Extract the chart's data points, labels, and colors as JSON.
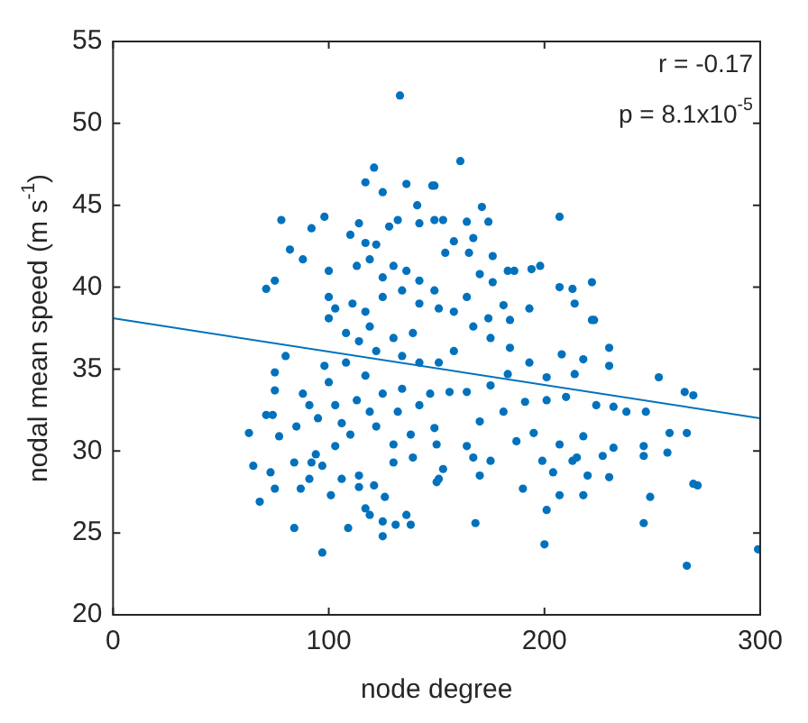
{
  "chart_data": {
    "type": "scatter",
    "xlabel": "node degree",
    "ylabel": "nodal mean speed (m s$^{-1}$)",
    "xlim": [
      0,
      300
    ],
    "xticks": [
      0,
      100,
      200,
      300
    ],
    "ylim": [
      20,
      55
    ],
    "yticks": [
      20,
      25,
      30,
      35,
      40,
      45,
      50,
      55
    ],
    "grid": false,
    "legend": false,
    "marker": "circle",
    "annotations": [
      "r = -0.17",
      "p = 8.1x10$^{-5}$"
    ],
    "series": [
      {
        "color": "#0072bd",
        "x": [
          133,
          121,
          117,
          136,
          148,
          125,
          78,
          98,
          92,
          82,
          88,
          100,
          75,
          71,
          114,
          110,
          117,
          122,
          128,
          132,
          141,
          142,
          149,
          113,
          119,
          125,
          130,
          136,
          142,
          100,
          103,
          111,
          117,
          125,
          134,
          142,
          149,
          151,
          161,
          149,
          171,
          164,
          174,
          153,
          207,
          167,
          158,
          154,
          165,
          176,
          198,
          194,
          183,
          186,
          170,
          176,
          207,
          213,
          222,
          214,
          223,
          164,
          158,
          181,
          193,
          174,
          184,
          80,
          75,
          75,
          74,
          71,
          63,
          77,
          85,
          65,
          73,
          75,
          68,
          84,
          87,
          84,
          97,
          92,
          94,
          91,
          101,
          109,
          88,
          91,
          95,
          98,
          100,
          103,
          106,
          110,
          103,
          97,
          106,
          114,
          114,
          121,
          117,
          119,
          125,
          131,
          136,
          138,
          125,
          126,
          113,
          117,
          119,
          122,
          125,
          130,
          130,
          132,
          134,
          138,
          139,
          142,
          147,
          149,
          150,
          151,
          142,
          108,
          114,
          122,
          134,
          100,
          108,
          119,
          130,
          139,
          222,
          253,
          265,
          269,
          266,
          258,
          257,
          247,
          246,
          246,
          269,
          271,
          249,
          246,
          266,
          299,
          200,
          201,
          168,
          190,
          207,
          218,
          230,
          204,
          199,
          215,
          227,
          232,
          218,
          207,
          195,
          187,
          181,
          191,
          201,
          210,
          224,
          232,
          238,
          230,
          230,
          218,
          208,
          214,
          201,
          193,
          184,
          175,
          167,
          158,
          151,
          164,
          170,
          164,
          153,
          167,
          175,
          170,
          150,
          156,
          175,
          183,
          220,
          213
        ],
        "values": [
          51.7,
          47.3,
          46.4,
          46.3,
          46.2,
          45.8,
          44.1,
          44.3,
          43.6,
          42.3,
          41.7,
          41,
          40.4,
          39.9,
          43.9,
          43.2,
          42.7,
          42.6,
          43.7,
          44.1,
          45,
          43.9,
          44.1,
          41.3,
          41.7,
          40.6,
          41.3,
          41,
          40.4,
          39.4,
          38.7,
          39,
          38.5,
          39.4,
          39.8,
          39,
          39.8,
          38.7,
          47.7,
          46.2,
          44.9,
          44,
          44,
          44.1,
          44.3,
          43,
          42.8,
          42.1,
          42.1,
          41.9,
          41.3,
          41.1,
          41,
          41,
          40.8,
          40.3,
          40,
          39.9,
          40.3,
          39,
          38,
          39.4,
          38.5,
          38.9,
          38.7,
          38.1,
          38,
          35.8,
          34.8,
          33.7,
          32.2,
          32.2,
          31.1,
          30.9,
          31.5,
          29.1,
          28.7,
          27.7,
          26.9,
          29.3,
          27.7,
          25.3,
          23.8,
          29.3,
          29.8,
          28.3,
          27.3,
          25.3,
          33.5,
          32.8,
          32,
          35.2,
          34.2,
          32.8,
          31.7,
          31,
          30.3,
          29.1,
          28.3,
          28.5,
          27.8,
          27.9,
          26.5,
          26.1,
          25.7,
          25.5,
          26.1,
          25.5,
          24.8,
          27.2,
          33.1,
          34.6,
          32.4,
          31.5,
          33.5,
          30.4,
          29.3,
          32.4,
          33.8,
          31,
          29.6,
          35.4,
          33.5,
          31.4,
          30.4,
          28.3,
          32.8,
          35.4,
          36.7,
          36.1,
          35.8,
          38.1,
          37.2,
          37.6,
          36.9,
          37.2,
          38,
          34.5,
          33.6,
          33.4,
          31.1,
          31.1,
          29.9,
          32.4,
          30.3,
          29.7,
          28,
          27.9,
          27.2,
          25.6,
          23,
          24,
          24.3,
          26.4,
          25.6,
          27.7,
          27.3,
          27.3,
          28.4,
          28.7,
          29.4,
          29.6,
          29.7,
          30.2,
          30.9,
          30.4,
          31.1,
          30.6,
          32.4,
          33,
          33.1,
          33.3,
          32.8,
          32.7,
          32.4,
          35.2,
          36.3,
          35.6,
          35.9,
          34.7,
          34.5,
          35.4,
          36.3,
          36.9,
          37.6,
          36.1,
          35.4,
          33.6,
          31.8,
          30.3,
          28.9,
          29.6,
          29.4,
          28.5,
          28.1,
          33.6,
          34,
          34.7,
          28.5,
          29.4
        ]
      },
      {
        "type": "line",
        "color": "#0072bd",
        "marker": "none",
        "x": [
          0,
          300
        ],
        "values": [
          38.1,
          32.0
        ]
      }
    ]
  }
}
